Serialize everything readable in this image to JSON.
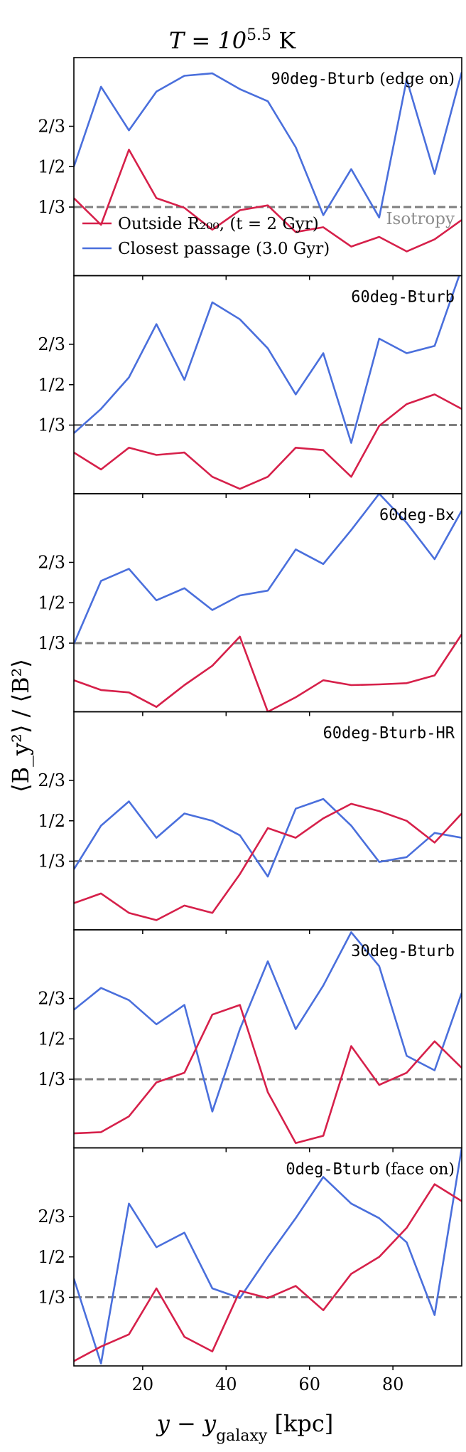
{
  "figure": {
    "title": "T = 10^5.5 K",
    "xlabel": "y − y_galaxy [kpc]",
    "ylabel": "⟨B_y²⟩ / ⟨B²⟩",
    "isotropy_label": "Isotropy",
    "colors": {
      "outside": "#d6204a",
      "closest": "#4a6fdc",
      "isotropy": "#7f7f7f"
    }
  },
  "legend": {
    "outside": "Outside R₂₀₀, (t = 2 Gyr)",
    "closest": "Closest passage (3.0 Gyr)"
  },
  "chart_data": {
    "type": "line",
    "xlim": [
      3.5,
      96.5
    ],
    "ylim": [
      0.05,
      0.95
    ],
    "xticks": [
      20,
      40,
      60,
      80
    ],
    "yticks": [
      {
        "value": 0.3333,
        "label": "1/3"
      },
      {
        "value": 0.5,
        "label": "1/2"
      },
      {
        "value": 0.6667,
        "label": "2/3"
      }
    ],
    "isotropy_value": 0.3333,
    "x": [
      3.5,
      10,
      16.7,
      23.3,
      30,
      36.7,
      43.3,
      50,
      56.7,
      63.3,
      70,
      76.7,
      83.3,
      90,
      96.5
    ],
    "panels": [
      {
        "label": "90deg-Bturb",
        "label_suffix": " (edge on)",
        "series": [
          {
            "name": "Closest passage (3.0 Gyr)",
            "key": "closest",
            "values": [
              0.5,
              0.83,
              0.65,
              0.81,
              0.875,
              0.885,
              0.82,
              0.77,
              0.58,
              0.3,
              0.49,
              0.29,
              0.86,
              0.47,
              0.89
            ]
          },
          {
            "name": "Outside R200 (t = 2 Gyr)",
            "key": "outside",
            "values": [
              0.37,
              0.26,
              0.57,
              0.37,
              0.33,
              0.24,
              0.32,
              0.34,
              0.23,
              0.25,
              0.17,
              0.21,
              0.15,
              0.2,
              0.28
            ]
          }
        ]
      },
      {
        "label": "60deg-Bturb",
        "label_suffix": "",
        "series": [
          {
            "name": "Closest passage (3.0 Gyr)",
            "key": "closest",
            "values": [
              0.3,
              0.4,
              0.53,
              0.75,
              0.52,
              0.84,
              0.77,
              0.65,
              0.46,
              0.63,
              0.26,
              0.69,
              0.63,
              0.66,
              0.98
            ]
          },
          {
            "name": "Outside R200 (t = 2 Gyr)",
            "key": "outside",
            "values": [
              0.22,
              0.15,
              0.24,
              0.21,
              0.22,
              0.12,
              0.07,
              0.12,
              0.24,
              0.23,
              0.12,
              0.33,
              0.42,
              0.46,
              0.4
            ]
          }
        ]
      },
      {
        "label": "60deg-Bx",
        "label_suffix": "",
        "series": [
          {
            "name": "Closest passage (3.0 Gyr)",
            "key": "closest",
            "values": [
              0.33,
              0.59,
              0.64,
              0.51,
              0.56,
              0.47,
              0.53,
              0.55,
              0.72,
              0.66,
              0.8,
              0.95,
              0.83,
              0.68,
              0.88
            ]
          },
          {
            "name": "Outside R200 (t = 2 Gyr)",
            "key": "outside",
            "values": [
              0.18,
              0.14,
              0.13,
              0.07,
              0.16,
              0.24,
              0.36,
              0.05,
              0.11,
              0.18,
              0.16,
              0.163,
              0.168,
              0.2,
              0.37
            ]
          }
        ]
      },
      {
        "label": "60deg-Bturb-HR",
        "label_suffix": "",
        "series": [
          {
            "name": "Closest passage (3.0 Gyr)",
            "key": "closest",
            "values": [
              0.3,
              0.48,
              0.58,
              0.43,
              0.53,
              0.5,
              0.44,
              0.27,
              0.55,
              0.59,
              0.48,
              0.33,
              0.35,
              0.45,
              0.43
            ]
          },
          {
            "name": "Outside R200 (t = 2 Gyr)",
            "key": "outside",
            "values": [
              0.16,
              0.2,
              0.12,
              0.09,
              0.15,
              0.12,
              0.28,
              0.47,
              0.43,
              0.51,
              0.57,
              0.54,
              0.5,
              0.41,
              0.53
            ]
          }
        ]
      },
      {
        "label": "30deg-Bturb",
        "label_suffix": "",
        "series": [
          {
            "name": "Closest passage (3.0 Gyr)",
            "key": "closest",
            "values": [
              0.62,
              0.71,
              0.66,
              0.56,
              0.64,
              0.2,
              0.54,
              0.82,
              0.54,
              0.72,
              0.94,
              0.8,
              0.43,
              0.37,
              0.69
            ]
          },
          {
            "name": "Outside R200 (t = 2 Gyr)",
            "key": "outside",
            "values": [
              0.11,
              0.115,
              0.18,
              0.32,
              0.36,
              0.6,
              0.64,
              0.28,
              0.07,
              0.1,
              0.47,
              0.31,
              0.36,
              0.49,
              0.38
            ]
          }
        ]
      },
      {
        "label": "0deg-Bturb",
        "label_suffix": " (face on)",
        "series": [
          {
            "name": "Closest passage (3.0 Gyr)",
            "key": "closest",
            "values": [
              0.41,
              0.06,
              0.72,
              0.54,
              0.6,
              0.37,
              0.33,
              0.5,
              0.66,
              0.83,
              0.72,
              0.66,
              0.56,
              0.26,
              0.95
            ]
          },
          {
            "name": "Outside R200 (t = 2 Gyr)",
            "key": "outside",
            "values": [
              0.07,
              0.13,
              0.18,
              0.37,
              0.17,
              0.11,
              0.36,
              0.33,
              0.38,
              0.28,
              0.43,
              0.5,
              0.62,
              0.8,
              0.73
            ]
          }
        ]
      }
    ]
  }
}
